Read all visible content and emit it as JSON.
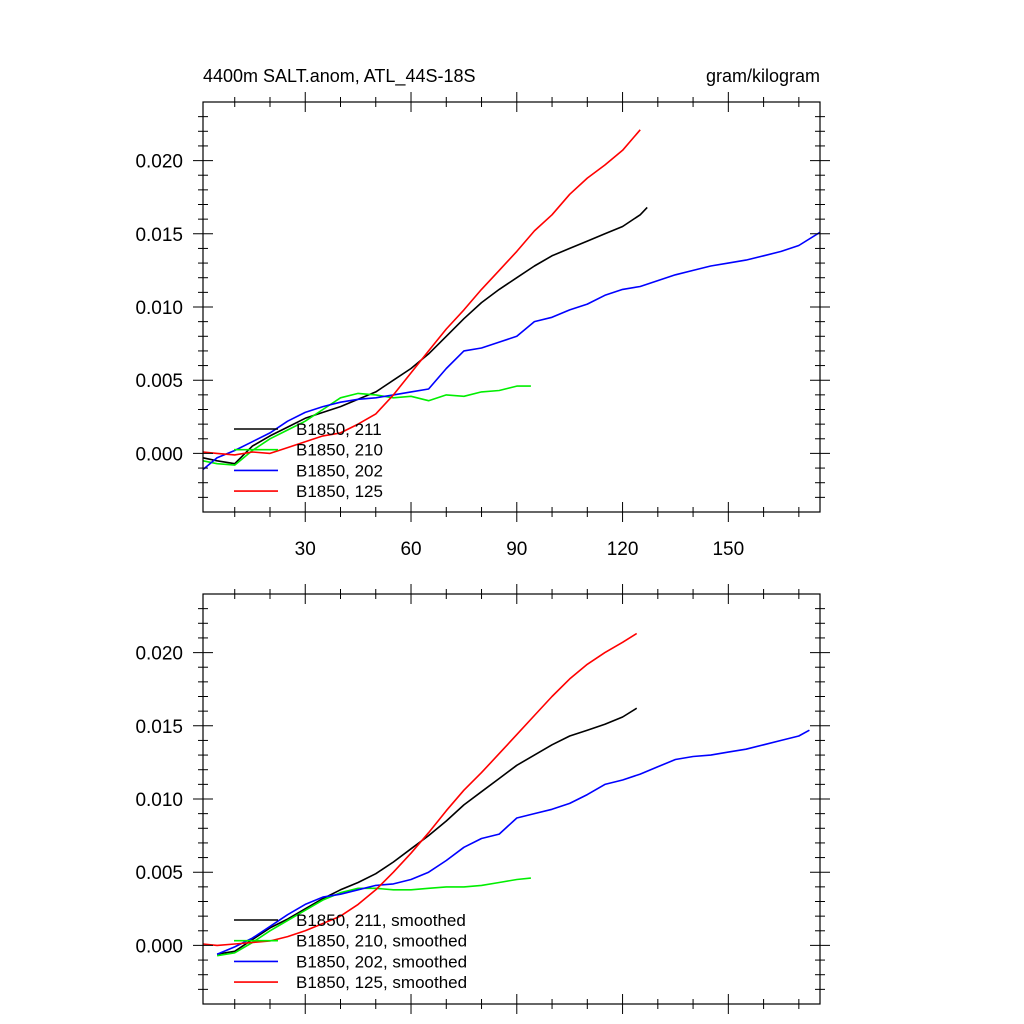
{
  "figure": {
    "title_left": "4400m SALT.anom, ATL_44S-18S",
    "title_right": "gram/kilogram"
  },
  "chart_data": [
    {
      "type": "line",
      "panel": "top",
      "xlim": [
        1,
        176
      ],
      "ylim": [
        -0.004,
        0.024
      ],
      "xticks": [
        30,
        60,
        90,
        120,
        150
      ],
      "xtick_labels": [
        "30",
        "60",
        "90",
        "120",
        "150"
      ],
      "yticks": [
        0.0,
        0.005,
        0.01,
        0.015,
        0.02
      ],
      "ytick_labels": [
        "0.000",
        "0.005",
        "0.010",
        "0.015",
        "0.020"
      ],
      "legend_position": "bottom-left",
      "series": [
        {
          "name": "B1850, 211",
          "color": "#000000",
          "x": [
            1,
            5,
            10,
            15,
            20,
            25,
            30,
            35,
            40,
            45,
            50,
            55,
            60,
            65,
            70,
            75,
            80,
            85,
            90,
            95,
            100,
            105,
            110,
            115,
            120,
            125,
            127
          ],
          "y": [
            -0.0003,
            -0.0005,
            -0.0007,
            0.0005,
            0.0012,
            0.0018,
            0.0024,
            0.0028,
            0.0032,
            0.0037,
            0.0042,
            0.005,
            0.0058,
            0.0068,
            0.008,
            0.0092,
            0.0103,
            0.0112,
            0.012,
            0.0128,
            0.0135,
            0.014,
            0.0145,
            0.015,
            0.0155,
            0.0163,
            0.0168
          ]
        },
        {
          "name": "B1850, 210",
          "color": "#00ee00",
          "x": [
            1,
            5,
            10,
            15,
            20,
            25,
            30,
            35,
            40,
            45,
            50,
            55,
            60,
            65,
            70,
            75,
            80,
            85,
            90,
            94
          ],
          "y": [
            -0.0005,
            -0.0007,
            -0.0008,
            0.0002,
            0.001,
            0.0016,
            0.0022,
            0.003,
            0.0038,
            0.0041,
            0.004,
            0.0038,
            0.0039,
            0.0036,
            0.004,
            0.0039,
            0.0042,
            0.0043,
            0.0046,
            0.0046
          ]
        },
        {
          "name": "B1850, 202",
          "color": "#0000ff",
          "x": [
            1,
            5,
            10,
            15,
            20,
            25,
            30,
            35,
            40,
            45,
            50,
            55,
            60,
            65,
            70,
            75,
            80,
            85,
            90,
            95,
            100,
            105,
            110,
            115,
            120,
            125,
            130,
            135,
            140,
            145,
            150,
            155,
            160,
            165,
            170,
            176
          ],
          "y": [
            -0.0011,
            -0.0003,
            0.0002,
            0.0008,
            0.0014,
            0.0022,
            0.0028,
            0.0032,
            0.0035,
            0.0037,
            0.0038,
            0.004,
            0.0042,
            0.0044,
            0.0058,
            0.007,
            0.0072,
            0.0076,
            0.008,
            0.009,
            0.0093,
            0.0098,
            0.0102,
            0.0108,
            0.0112,
            0.0114,
            0.0118,
            0.0122,
            0.0125,
            0.0128,
            0.013,
            0.0132,
            0.0135,
            0.0138,
            0.0142,
            0.0151
          ]
        },
        {
          "name": "B1850, 125",
          "color": "#ff0000",
          "x": [
            1,
            5,
            10,
            15,
            20,
            25,
            30,
            35,
            40,
            45,
            50,
            55,
            60,
            65,
            70,
            75,
            80,
            85,
            90,
            95,
            100,
            105,
            110,
            115,
            120,
            125
          ],
          "y": [
            0.0001,
            0.0,
            -0.0001,
            0.0001,
            0.0,
            0.0004,
            0.0008,
            0.0012,
            0.0014,
            0.002,
            0.0027,
            0.004,
            0.0055,
            0.007,
            0.0085,
            0.0098,
            0.0112,
            0.0125,
            0.0138,
            0.0152,
            0.0163,
            0.0177,
            0.0188,
            0.0197,
            0.0207,
            0.0221
          ]
        }
      ]
    },
    {
      "type": "line",
      "panel": "bottom",
      "xlim": [
        1,
        176
      ],
      "ylim": [
        -0.004,
        0.024
      ],
      "xticks": [
        30,
        60,
        90,
        120,
        150
      ],
      "yticks": [
        0.0,
        0.005,
        0.01,
        0.015,
        0.02
      ],
      "ytick_labels": [
        "0.000",
        "0.005",
        "0.010",
        "0.015",
        "0.020"
      ],
      "legend_position": "bottom-left",
      "series": [
        {
          "name": "B1850, 211, smoothed",
          "color": "#000000",
          "x": [
            5,
            10,
            15,
            20,
            25,
            30,
            35,
            40,
            45,
            50,
            55,
            60,
            65,
            70,
            75,
            80,
            85,
            90,
            95,
            100,
            105,
            110,
            115,
            120,
            124
          ],
          "y": [
            -0.0006,
            -0.0004,
            0.0004,
            0.0012,
            0.0018,
            0.0025,
            0.0032,
            0.0038,
            0.0043,
            0.0049,
            0.0057,
            0.0066,
            0.0075,
            0.0085,
            0.0096,
            0.0105,
            0.0114,
            0.0123,
            0.013,
            0.0137,
            0.0143,
            0.0147,
            0.0151,
            0.0156,
            0.0162
          ]
        },
        {
          "name": "B1850, 210, smoothed",
          "color": "#00ee00",
          "x": [
            5,
            10,
            15,
            20,
            25,
            30,
            35,
            40,
            45,
            50,
            55,
            60,
            65,
            70,
            75,
            80,
            85,
            90,
            94
          ],
          "y": [
            -0.0007,
            -0.0005,
            0.0002,
            0.001,
            0.0017,
            0.0024,
            0.0031,
            0.0036,
            0.0039,
            0.0039,
            0.0038,
            0.0038,
            0.0039,
            0.004,
            0.004,
            0.0041,
            0.0043,
            0.0045,
            0.0046
          ]
        },
        {
          "name": "B1850, 202, smoothed",
          "color": "#0000ff",
          "x": [
            5,
            10,
            15,
            20,
            25,
            30,
            35,
            40,
            45,
            50,
            55,
            60,
            65,
            70,
            75,
            80,
            85,
            90,
            95,
            100,
            105,
            110,
            115,
            120,
            125,
            130,
            135,
            140,
            145,
            150,
            155,
            160,
            165,
            170,
            173
          ],
          "y": [
            -0.0006,
            -0.0001,
            0.0005,
            0.0013,
            0.0021,
            0.0028,
            0.0033,
            0.0035,
            0.0038,
            0.0041,
            0.0042,
            0.0045,
            0.005,
            0.0058,
            0.0067,
            0.0073,
            0.0076,
            0.0087,
            0.009,
            0.0093,
            0.0097,
            0.0103,
            0.011,
            0.0113,
            0.0117,
            0.0122,
            0.0127,
            0.0129,
            0.013,
            0.0132,
            0.0134,
            0.0137,
            0.014,
            0.0143,
            0.0147
          ]
        },
        {
          "name": "B1850, 125, smoothed",
          "color": "#ff0000",
          "x": [
            1,
            5,
            10,
            15,
            20,
            25,
            30,
            35,
            40,
            45,
            50,
            55,
            60,
            65,
            70,
            75,
            80,
            85,
            90,
            95,
            100,
            105,
            110,
            115,
            120,
            124
          ],
          "y": [
            0.0001,
            0.0,
            0.0001,
            0.0002,
            0.0003,
            0.0006,
            0.001,
            0.0015,
            0.002,
            0.0028,
            0.0038,
            0.005,
            0.0063,
            0.0077,
            0.0092,
            0.0106,
            0.0118,
            0.0131,
            0.0144,
            0.0157,
            0.017,
            0.0182,
            0.0192,
            0.02,
            0.0207,
            0.0213
          ]
        }
      ]
    }
  ]
}
